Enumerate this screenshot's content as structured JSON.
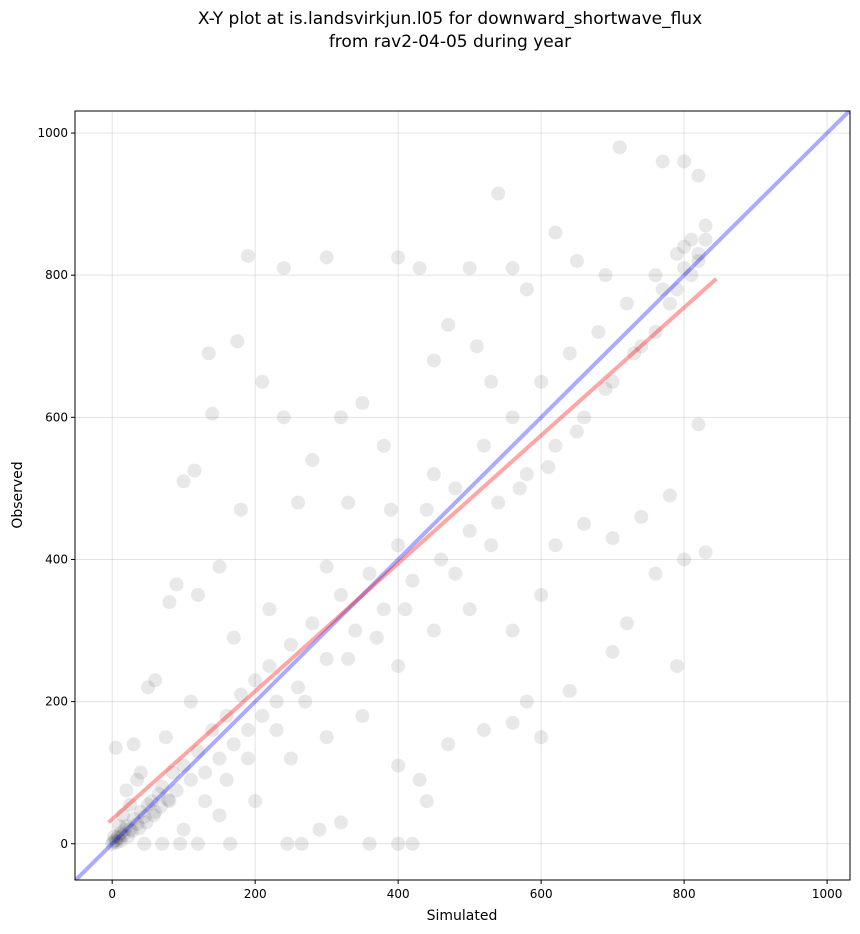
{
  "chart_data": {
    "type": "scatter",
    "title": [
      "X-Y plot at is.landsvirkjun.l05 for downward_shortwave_flux",
      "from rav2-04-05 during year"
    ],
    "xlabel": "Simulated",
    "ylabel": "Observed",
    "xlim": [
      -52,
      1032
    ],
    "ylim": [
      -51,
      1031
    ],
    "xticks": [
      0,
      200,
      400,
      600,
      800,
      1000
    ],
    "yticks": [
      0,
      200,
      400,
      600,
      800,
      1000
    ],
    "grid": true,
    "x": [
      0,
      2,
      5,
      8,
      10,
      12,
      15,
      18,
      20,
      25,
      30,
      35,
      40,
      45,
      50,
      55,
      60,
      65,
      70,
      80,
      85,
      90,
      100,
      110,
      120,
      130,
      140,
      150,
      160,
      170,
      180,
      190,
      200,
      210,
      220,
      230,
      250,
      260,
      280,
      300,
      320,
      340,
      360,
      380,
      400,
      420,
      440,
      460,
      480,
      500,
      520,
      540,
      560,
      580,
      600,
      620,
      640,
      660,
      680,
      700,
      720,
      740,
      760,
      780,
      800,
      820,
      830,
      810,
      790,
      770,
      190,
      240,
      300,
      400,
      430,
      710,
      770,
      800,
      820,
      540,
      500,
      135,
      175,
      210,
      140,
      100,
      115,
      60,
      80,
      90,
      50,
      30,
      5,
      20,
      35,
      45,
      70,
      95,
      120,
      165,
      245,
      265,
      290,
      320,
      360,
      400,
      420,
      440,
      430,
      400,
      470,
      520,
      560,
      600,
      580,
      640,
      700,
      720,
      760,
      790,
      800,
      830,
      820,
      780,
      740,
      700,
      660,
      620,
      600,
      560,
      500,
      450,
      400,
      350,
      300,
      250,
      200,
      150,
      100,
      130,
      160,
      190,
      230,
      270,
      330,
      370,
      410,
      480,
      530,
      570,
      610,
      650,
      690,
      730,
      760,
      790,
      810,
      830,
      800,
      820,
      280,
      320,
      350,
      380,
      240,
      260,
      180,
      150,
      120,
      330,
      450,
      470,
      510,
      530,
      580,
      620,
      650,
      690,
      560,
      450,
      390,
      300,
      220,
      170,
      110,
      75,
      40,
      15,
      25,
      10,
      3,
      6,
      12,
      22,
      28,
      38,
      48,
      58,
      68,
      78
    ],
    "series": [
      {
        "color": "#000000",
        "opacity": 0.09,
        "values": [
          0,
          3,
          5,
          10,
          8,
          15,
          12,
          20,
          25,
          20,
          35,
          28,
          45,
          38,
          55,
          60,
          45,
          70,
          80,
          60,
          100,
          75,
          110,
          90,
          130,
          100,
          160,
          120,
          180,
          140,
          210,
          160,
          230,
          180,
          250,
          200,
          280,
          220,
          310,
          260,
          350,
          300,
          380,
          330,
          420,
          370,
          470,
          400,
          500,
          440,
          560,
          480,
          600,
          520,
          650,
          560,
          690,
          600,
          720,
          650,
          760,
          700,
          800,
          760,
          840,
          820,
          850,
          800,
          830,
          780,
          827,
          810,
          825,
          825,
          810,
          980,
          960,
          960,
          940,
          915,
          810,
          690,
          707,
          650,
          605,
          510,
          525,
          230,
          340,
          365,
          220,
          140,
          135,
          75,
          90,
          0,
          0,
          0,
          0,
          0,
          0,
          0,
          20,
          30,
          0,
          0,
          0,
          60,
          90,
          110,
          140,
          160,
          170,
          150,
          200,
          215,
          270,
          310,
          380,
          250,
          400,
          410,
          590,
          490,
          460,
          430,
          450,
          420,
          350,
          300,
          330,
          300,
          250,
          180,
          150,
          120,
          60,
          40,
          20,
          60,
          90,
          120,
          160,
          200,
          260,
          290,
          330,
          380,
          420,
          500,
          530,
          580,
          640,
          690,
          720,
          780,
          850,
          870,
          810,
          830,
          540,
          600,
          620,
          560,
          600,
          480,
          470,
          390,
          350,
          480,
          680,
          730,
          700,
          650,
          780,
          860,
          820,
          800,
          810,
          520,
          470,
          390,
          330,
          290,
          200,
          150,
          100,
          40,
          55,
          25,
          10,
          2,
          4,
          10,
          18,
          22,
          30,
          40,
          52,
          62
        ]
      }
    ],
    "lines": [
      {
        "color": "#0000ff",
        "opacity": 0.33,
        "x": [
          -60,
          1040
        ],
        "values": [
          -60,
          1040
        ]
      },
      {
        "color": "#ff0000",
        "opacity": 0.35,
        "x": [
          -5,
          845
        ],
        "values": [
          30,
          795
        ]
      }
    ]
  }
}
